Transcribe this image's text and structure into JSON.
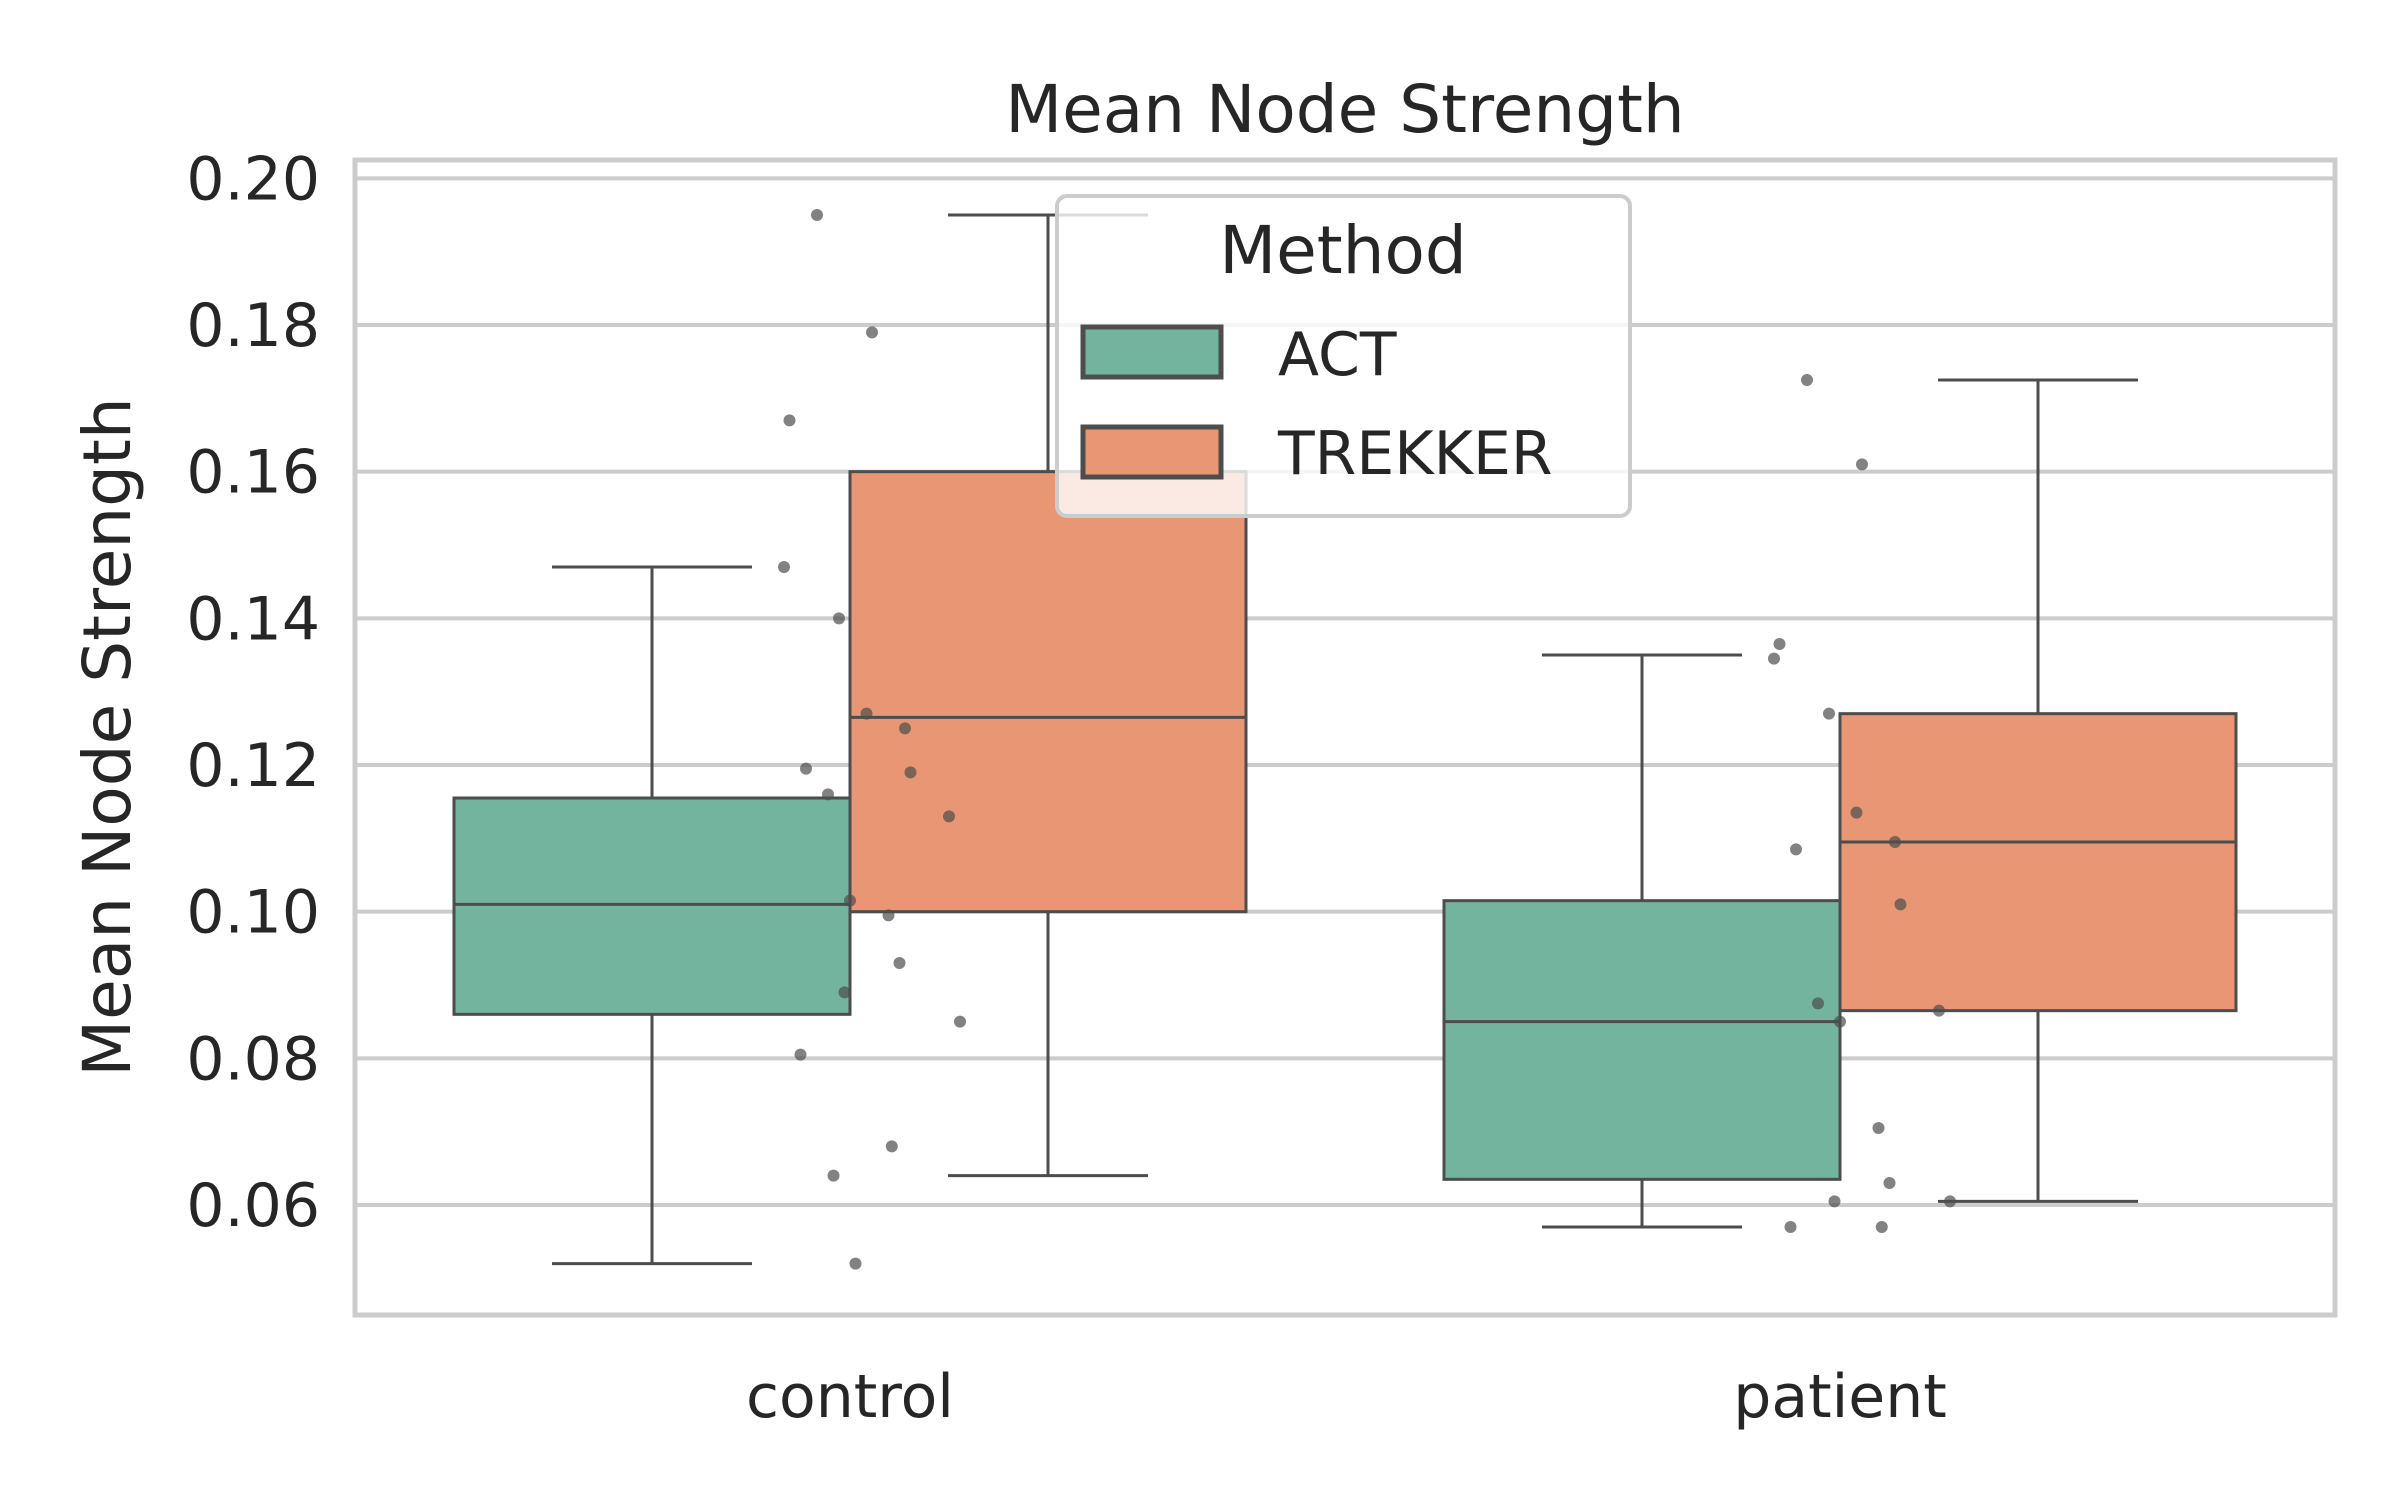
{
  "chart_data": {
    "type": "box",
    "title": "Mean Node Strength",
    "xlabel": "",
    "ylabel": "Mean Node Strength",
    "categories": [
      "control",
      "patient"
    ],
    "ylim": [
      0.045,
      0.2025
    ],
    "yticks": [
      "0.06",
      "0.08",
      "0.10",
      "0.12",
      "0.14",
      "0.16",
      "0.18",
      "0.20"
    ],
    "grid": true,
    "legend": {
      "title": "Method",
      "placement": "top-center"
    },
    "series": [
      {
        "name": "ACT",
        "color": "#73b49f",
        "boxes": [
          {
            "whisker_low": 0.052,
            "q1": 0.086,
            "median": 0.101,
            "q3": 0.1155,
            "whisker_high": 0.147
          },
          {
            "whisker_low": 0.057,
            "q1": 0.0635,
            "median": 0.085,
            "q3": 0.1015,
            "whisker_high": 0.135
          }
        ]
      },
      {
        "name": "TREKKER",
        "color": "#e89673",
        "boxes": [
          {
            "whisker_low": 0.064,
            "q1": 0.1,
            "median": 0.1265,
            "q3": 0.16,
            "whisker_high": 0.195
          },
          {
            "whisker_low": 0.0605,
            "q1": 0.0865,
            "median": 0.1095,
            "q3": 0.127,
            "whisker_high": 0.1725
          }
        ]
      }
    ],
    "points": [
      {
        "category": "control",
        "values": [
          0.195,
          0.179,
          0.167,
          0.147,
          0.14,
          0.127,
          0.125,
          0.1195,
          0.119,
          0.116,
          0.113,
          0.1015,
          0.0995,
          0.093,
          0.089,
          0.085,
          0.0805,
          0.068,
          0.064,
          0.052
        ]
      },
      {
        "category": "patient",
        "values": [
          0.1725,
          0.161,
          0.1365,
          0.1345,
          0.127,
          0.1135,
          0.1095,
          0.1085,
          0.101,
          0.0875,
          0.0865,
          0.085,
          0.0705,
          0.063,
          0.0605,
          0.0605,
          0.057,
          0.057
        ]
      }
    ]
  }
}
